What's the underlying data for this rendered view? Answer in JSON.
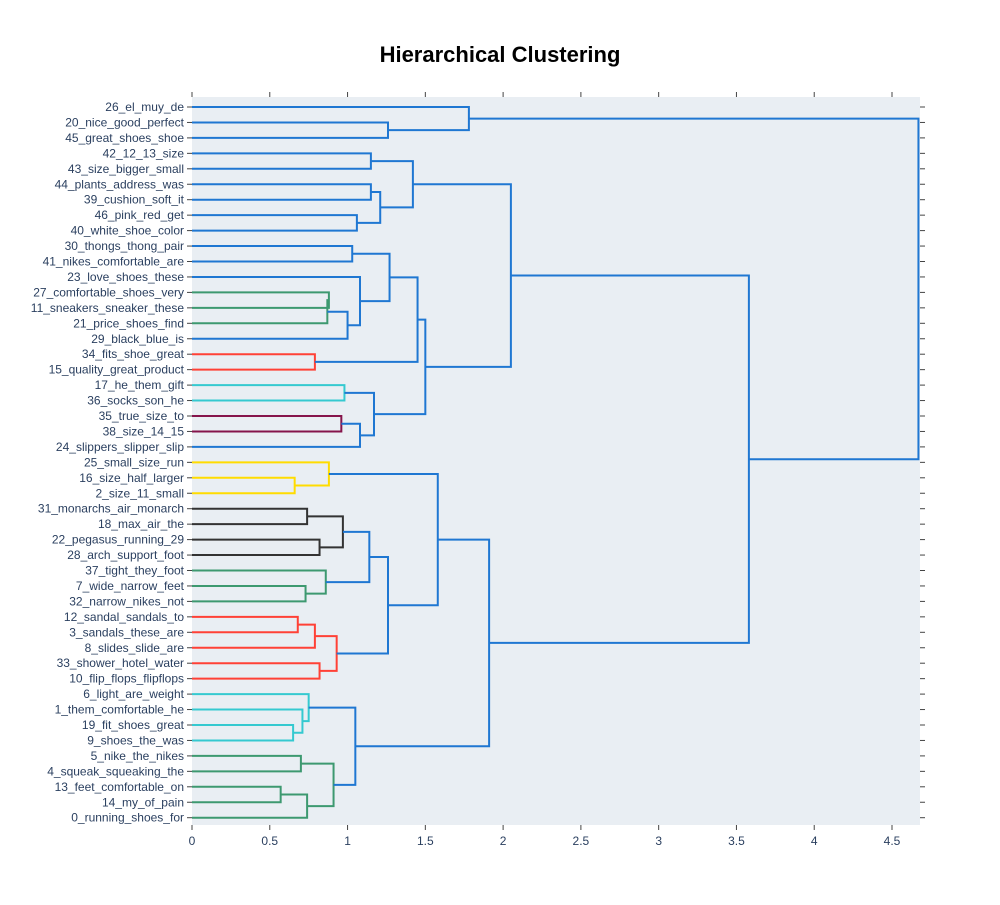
{
  "chart_data": {
    "type": "dendrogram",
    "orientation": "horizontal",
    "title": "Hierarchical Clustering",
    "xlabel": "",
    "ylabel": "",
    "xlim": [
      0,
      4.68
    ],
    "x_ticks": [
      0,
      0.5,
      1,
      1.5,
      2,
      2.5,
      3,
      3.5,
      4,
      4.5
    ],
    "grid": false,
    "legend": "none",
    "leaves": [
      "26_el_muy_de",
      "20_nice_good_perfect",
      "45_great_shoes_shoe",
      "42_12_13_size",
      "43_size_bigger_small",
      "44_plants_address_was",
      "39_cushion_soft_it",
      "46_pink_red_get",
      "40_white_shoe_color",
      "30_thongs_thong_pair",
      "41_nikes_comfortable_are",
      "23_love_shoes_these",
      "27_comfortable_shoes_very",
      "11_sneakers_sneaker_these",
      "21_price_shoes_find",
      "29_black_blue_is",
      "34_fits_shoe_great",
      "15_quality_great_product",
      "17_he_them_gift",
      "36_socks_son_he",
      "35_true_size_to",
      "38_size_14_15",
      "24_slippers_slipper_slip",
      "25_small_size_run",
      "16_size_half_larger",
      "2_size_11_small",
      "31_monarchs_air_monarch",
      "18_max_air_the",
      "22_pegasus_running_29",
      "28_arch_support_foot",
      "37_tight_they_foot",
      "7_wide_narrow_feet",
      "32_narrow_nikes_not",
      "12_sandal_sandals_to",
      "3_sandals_these_are",
      "8_slides_slide_are",
      "33_shower_hotel_water",
      "10_flip_flops_flipflops",
      "6_light_are_weight",
      "1_them_comfortable_he",
      "19_fit_shoes_great",
      "9_shoes_the_was",
      "5_nike_the_nikes",
      "4_squeak_squeaking_the",
      "13_feet_comfortable_on",
      "14_my_of_pain",
      "0_running_shoes_for"
    ],
    "merges": [
      {
        "id": "A1",
        "left": "L1",
        "right": "L2",
        "height": 1.26,
        "color": "#1f77d2"
      },
      {
        "id": "A2",
        "left": "L0",
        "right": "A1",
        "height": 1.78,
        "color": "#1f77d2"
      },
      {
        "id": "B1",
        "left": "L3",
        "right": "L4",
        "height": 1.15,
        "color": "#1f77d2"
      },
      {
        "id": "B2",
        "left": "L5",
        "right": "L6",
        "height": 1.15,
        "color": "#1f77d2"
      },
      {
        "id": "B3",
        "left": "L7",
        "right": "L8",
        "height": 1.06,
        "color": "#1f77d2"
      },
      {
        "id": "B4",
        "left": "B2",
        "right": "B3",
        "height": 1.21,
        "color": "#1f77d2"
      },
      {
        "id": "B5",
        "left": "B1",
        "right": "B4",
        "height": 1.42,
        "color": "#1f77d2"
      },
      {
        "id": "C1",
        "left": "L9",
        "right": "L10",
        "height": 1.03,
        "color": "#1f77d2"
      },
      {
        "id": "C2",
        "left": "L12",
        "right": "L13",
        "height": 0.88,
        "color": "#3d9970"
      },
      {
        "id": "C3",
        "left": "C2",
        "right": "L14",
        "height": 0.87,
        "color": "#3d9970"
      },
      {
        "id": "C4",
        "left": "C3",
        "right": "L15",
        "height": 1.0,
        "color": "#1f77d2"
      },
      {
        "id": "C5",
        "left": "L11",
        "right": "C4",
        "height": 1.08,
        "color": "#1f77d2"
      },
      {
        "id": "C6",
        "left": "C1",
        "right": "C5",
        "height": 1.27,
        "color": "#1f77d2"
      },
      {
        "id": "C7",
        "left": "L16",
        "right": "L17",
        "height": 0.79,
        "color": "#ff4136"
      },
      {
        "id": "C8",
        "left": "C6",
        "right": "C7",
        "height": 1.45,
        "color": "#1f77d2"
      },
      {
        "id": "D1",
        "left": "L18",
        "right": "L19",
        "height": 0.98,
        "color": "#35c9d0"
      },
      {
        "id": "D2",
        "left": "L20",
        "right": "L21",
        "height": 0.96,
        "color": "#85144b"
      },
      {
        "id": "D3",
        "left": "D2",
        "right": "L22",
        "height": 1.08,
        "color": "#1f77d2"
      },
      {
        "id": "D4",
        "left": "D1",
        "right": "D3",
        "height": 1.17,
        "color": "#1f77d2"
      },
      {
        "id": "D5",
        "left": "C8",
        "right": "D4",
        "height": 1.5,
        "color": "#1f77d2"
      },
      {
        "id": "E1",
        "left": "B5",
        "right": "D5",
        "height": 2.05,
        "color": "#1f77d2"
      },
      {
        "id": "F1",
        "left": "L24",
        "right": "L25",
        "height": 0.66,
        "color": "#ffdc00"
      },
      {
        "id": "F2",
        "left": "L23",
        "right": "F1",
        "height": 0.88,
        "color": "#ffdc00"
      },
      {
        "id": "G1",
        "left": "L26",
        "right": "L27",
        "height": 0.74,
        "color": "#333333"
      },
      {
        "id": "G2",
        "left": "L28",
        "right": "L29",
        "height": 0.82,
        "color": "#333333"
      },
      {
        "id": "G3",
        "left": "G1",
        "right": "G2",
        "height": 0.97,
        "color": "#333333"
      },
      {
        "id": "H1",
        "left": "L31",
        "right": "L32",
        "height": 0.73,
        "color": "#3d9970"
      },
      {
        "id": "H2",
        "left": "L30",
        "right": "H1",
        "height": 0.86,
        "color": "#3d9970"
      },
      {
        "id": "I1",
        "left": "G3",
        "right": "H2",
        "height": 1.14,
        "color": "#1f77d2"
      },
      {
        "id": "J1",
        "left": "L33",
        "right": "L34",
        "height": 0.68,
        "color": "#ff4136"
      },
      {
        "id": "J2",
        "left": "J1",
        "right": "L35",
        "height": 0.79,
        "color": "#ff4136"
      },
      {
        "id": "J3",
        "left": "L36",
        "right": "L37",
        "height": 0.82,
        "color": "#ff4136"
      },
      {
        "id": "J4",
        "left": "J2",
        "right": "J3",
        "height": 0.93,
        "color": "#ff4136"
      },
      {
        "id": "I2",
        "left": "I1",
        "right": "J4",
        "height": 1.26,
        "color": "#1f77d2"
      },
      {
        "id": "I3",
        "left": "F2",
        "right": "I2",
        "height": 1.58,
        "color": "#1f77d2"
      },
      {
        "id": "K1",
        "left": "L40",
        "right": "L41",
        "height": 0.65,
        "color": "#35c9d0"
      },
      {
        "id": "K2",
        "left": "L39",
        "right": "K1",
        "height": 0.71,
        "color": "#35c9d0"
      },
      {
        "id": "K3",
        "left": "L38",
        "right": "K2",
        "height": 0.75,
        "color": "#35c9d0"
      },
      {
        "id": "M1",
        "left": "L42",
        "right": "L43",
        "height": 0.7,
        "color": "#3d9970"
      },
      {
        "id": "M2",
        "left": "L44",
        "right": "L45",
        "height": 0.57,
        "color": "#3d9970"
      },
      {
        "id": "M3",
        "left": "M2",
        "right": "L46",
        "height": 0.74,
        "color": "#3d9970"
      },
      {
        "id": "M4",
        "left": "M1",
        "right": "M3",
        "height": 0.91,
        "color": "#3d9970"
      },
      {
        "id": "N1",
        "left": "K3",
        "right": "M4",
        "height": 1.05,
        "color": "#1f77d2"
      },
      {
        "id": "O1",
        "left": "I3",
        "right": "N1",
        "height": 1.91,
        "color": "#1f77d2"
      },
      {
        "id": "P1",
        "left": "E1",
        "right": "O1",
        "height": 3.58,
        "color": "#1f77d2"
      },
      {
        "id": "ROOT",
        "left": "A2",
        "right": "P1",
        "height": 4.67,
        "color": "#1f77d2"
      }
    ]
  }
}
